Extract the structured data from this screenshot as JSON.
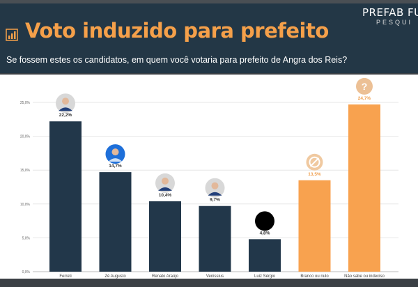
{
  "header": {
    "title": "Voto induzido para prefeito",
    "subtitle": "Se fossem estes os candidatos, em quem você votaria para prefeito de Angra dos Reis?",
    "logo_text": "PREFAB FU",
    "logo_subtext": "PESQUI",
    "title_icon": "bar-chart-icon",
    "background": "#233746",
    "title_color": "#f5a04a"
  },
  "chart_data": {
    "type": "bar",
    "categories": [
      "Ferreti",
      "Zé Augusto",
      "Renato Araújo",
      "Venissius",
      "Luiz Sérgio",
      "Branco ou nulo",
      "Não sabe ou indeciso"
    ],
    "values": [
      22.2,
      14.7,
      10.4,
      9.7,
      4.8,
      13.5,
      24.7
    ],
    "value_labels": [
      "22,2%",
      "14,7%",
      "10,4%",
      "9,7%",
      "4,8%",
      "13,5%",
      "24,7%"
    ],
    "bar_colors": [
      "#22374a",
      "#22374a",
      "#22374a",
      "#22374a",
      "#22374a",
      "#f8a24f",
      "#f8a24f"
    ],
    "label_colors": [
      "#333333",
      "#333333",
      "#333333",
      "#333333",
      "#333333",
      "#f0a050",
      "#f0a050"
    ],
    "markers": [
      "candidate-photo",
      "candidate-photo",
      "candidate-photo",
      "candidate-photo",
      "black-circle",
      "null-icon",
      "question-icon"
    ],
    "yticks": [
      0,
      5,
      10,
      15,
      20,
      25
    ],
    "ytick_labels": [
      "0,0%",
      "5,0%",
      "10,0%",
      "15,0%",
      "20,0%",
      "25,0%"
    ],
    "ylim": [
      0,
      25
    ],
    "grid": true,
    "title": "",
    "xlabel": "",
    "ylabel": ""
  }
}
